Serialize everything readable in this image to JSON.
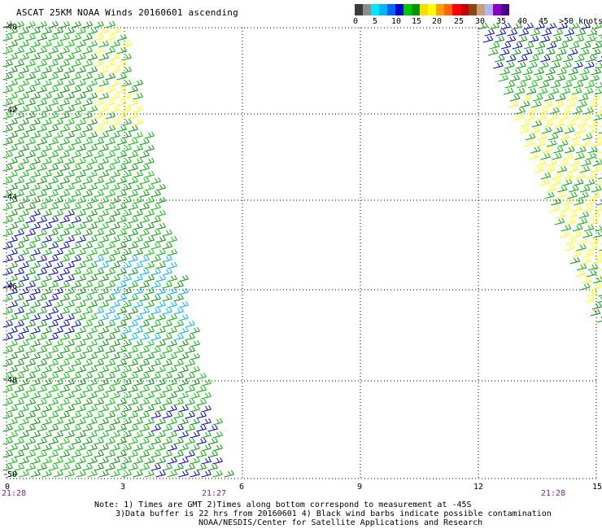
{
  "title": "ASCAT 25KM NOAA Winds 20160601 ascending",
  "legend": {
    "colors": [
      "#3a3a3a",
      "#8c8c8c",
      "#00e8ff",
      "#00b4ff",
      "#0064ff",
      "#0000d2",
      "#00c800",
      "#009600",
      "#ffdc00",
      "#ffff00",
      "#ffa000",
      "#ff6400",
      "#ff0000",
      "#c80000",
      "#8c4614",
      "#c8a078",
      "#b4b4ff",
      "#8c00c8",
      "#46008c"
    ],
    "ticks": [
      "0",
      "5",
      "10",
      "15",
      "20",
      "25",
      "30",
      "35",
      "40",
      "45",
      ">50 knots"
    ]
  },
  "axes": {
    "x_labels": [
      "0",
      "3",
      "6",
      "9",
      "12",
      "15"
    ],
    "y_labels": [
      "-40",
      "-42",
      "-44",
      "-46",
      "-48",
      "-50"
    ]
  },
  "times": [
    "21:28",
    "21:27",
    "21:28"
  ],
  "notes": {
    "line1": "Note: 1) Times are GMT 2)Times along bottom correspond to measurement at -45S",
    "line2": "3)Data buffer is 22 hrs from 20160601 4) Black wind barbs indicate possible contamination",
    "line3": "NOAA/NESDIS/Center for Satellite Applications and Research"
  }
}
